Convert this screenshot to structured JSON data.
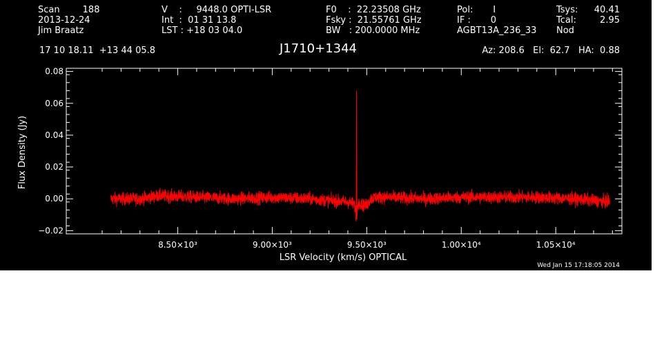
{
  "header": {
    "col1": [
      "Scan        188",
      "2013-12-24",
      "Jim Braatz"
    ],
    "col2": [
      "V    :     9448.0 OPTI-LSR",
      "Int  :  01 31 13.8",
      "LST : +18 03 04.0"
    ],
    "col3": [
      "F0    :  22.23508 GHz",
      "Fsky :  21.55761 GHz",
      "BW   : 200.0000 MHz"
    ],
    "col4": [
      "Pol:       I",
      "IF :       0",
      "AGBT13A_236_33"
    ],
    "col5a": [
      "Tsys:",
      "Tcal:",
      "Nod"
    ],
    "col5b": [
      "40.41",
      "2.95",
      ""
    ]
  },
  "coords": "17 10 18.11  +13 44 05.8",
  "source_name": "J1710+1344",
  "azelha": "Az: 208.6   El:  62.7   HA:  0.88",
  "timestamp": "Wed Jan 15 17:18:05 2014",
  "colors": {
    "background": "#000000",
    "axes": "#ffffff",
    "trace": "#ff0000"
  },
  "chart_data": {
    "type": "line",
    "title": "J1710+1344",
    "xlabel": "LSR Velocity (km/s) OPTICAL",
    "ylabel": "Flux Density (Jy)",
    "xlim": [
      7910,
      10850
    ],
    "ylim": [
      -0.022,
      0.082
    ],
    "x_ticks": [
      8500,
      9000,
      9500,
      10000,
      10500
    ],
    "x_tick_labels": [
      "8.50×10³",
      "9.00×10³",
      "9.50×10³",
      "1.00×10⁴",
      "1.05×10⁴"
    ],
    "y_ticks": [
      -0.02,
      0.0,
      0.02,
      0.04,
      0.06,
      0.08
    ],
    "y_tick_labels": [
      "−0.02",
      "0.00",
      "0.02",
      "0.04",
      "0.06",
      "0.08"
    ],
    "grid": false,
    "series": [
      {
        "x_range": [
          8145,
          10785
        ],
        "noise_rms": 0.0028,
        "x": [
          8145,
          8300,
          8400,
          8600,
          8800,
          9000,
          9200,
          9300,
          9400,
          9430,
          9440,
          9444,
          9446,
          9448,
          9450,
          9452,
          9455,
          9460,
          9480,
          9500,
          9520,
          9550,
          9600,
          9800,
          10000,
          10200,
          10400,
          10600,
          10785
        ],
        "y": [
          0.0,
          0.0,
          0.002,
          0.001,
          0.0,
          0.001,
          0.0,
          -0.001,
          -0.002,
          -0.003,
          -0.006,
          -0.012,
          0.068,
          -0.013,
          -0.006,
          -0.004,
          -0.003,
          -0.002,
          -0.004,
          -0.004,
          0.0,
          0.001,
          0.001,
          0.0,
          0.001,
          0.001,
          0.001,
          0.0,
          -0.002
        ]
      }
    ]
  }
}
